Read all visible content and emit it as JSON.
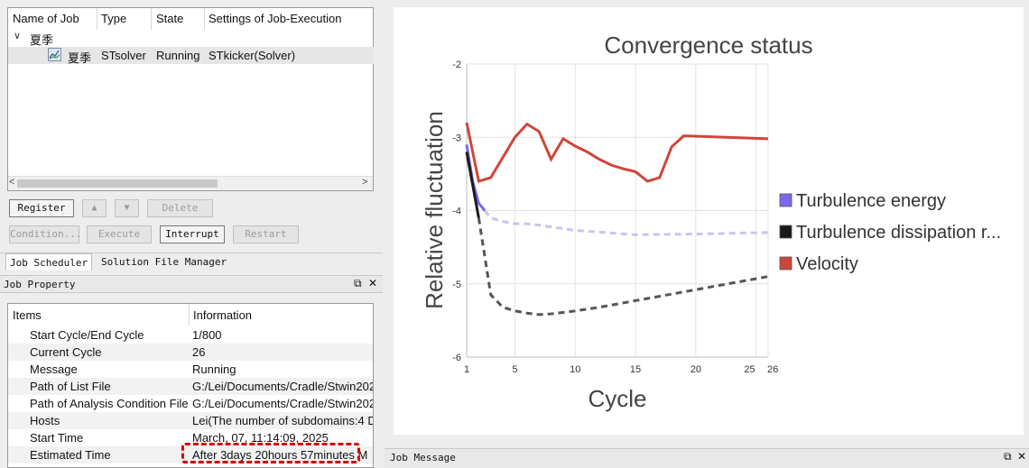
{
  "job_list": {
    "headers": {
      "name": "Name of Job",
      "type": "Type",
      "state": "State",
      "settings": "Settings of Job-Execution"
    },
    "group": {
      "toggle": "∨",
      "label": "夏季"
    },
    "jobs": [
      {
        "name": "夏季",
        "type": "STsolver",
        "state": "Running",
        "settings": "STkicker(Solver)"
      }
    ],
    "scroll_left": "<",
    "scroll_right": ">"
  },
  "buttons": {
    "register": "Register",
    "up": "▲",
    "down": "▼",
    "delete": "Delete",
    "condition": "Condition...",
    "execute": "Execute",
    "interrupt": "Interrupt",
    "restart": "Restart"
  },
  "tabs": {
    "job_scheduler": "Job Scheduler",
    "solution_file_manager": "Solution File Manager"
  },
  "job_property": {
    "title": "Job Property",
    "float_icon": "⧉",
    "close_icon": "✕",
    "headers": {
      "items": "Items",
      "information": "Information"
    },
    "rows": [
      {
        "item": "Start Cycle/End Cycle",
        "info": "1/800"
      },
      {
        "item": "Current Cycle",
        "info": "26"
      },
      {
        "item": "Message",
        "info": "Running"
      },
      {
        "item": "Path of List File",
        "info": "G:/Lei/Documents/Cradle/Stwin202"
      },
      {
        "item": "Path of Analysis Condition File",
        "info": "G:/Lei/Documents/Cradle/Stwin202"
      },
      {
        "item": "Hosts",
        "info": "Lei(The number of subdomains:4 D"
      },
      {
        "item": "Start Time",
        "info": "March, 07, 11:14:09, 2025"
      },
      {
        "item": "Estimated Time",
        "info": "After 3days 20hours 57minutes  M"
      }
    ]
  },
  "job_message": {
    "title": "Job Message",
    "float_icon": "⧉",
    "close_icon": "✕"
  },
  "colors": {
    "turbulence_energy": "#7b68ee",
    "turbulence_dissipation": "#1a1a1a",
    "velocity": "#d0453a",
    "highlight": "#d40000"
  },
  "chart_data": {
    "type": "line",
    "title": "Convergence status",
    "xlabel": "Cycle",
    "ylabel": "Relative fluctuation",
    "xlim": [
      1,
      26
    ],
    "ylim": [
      -6,
      -2
    ],
    "xticks": [
      "1",
      "5",
      "10",
      "15",
      "20",
      "25",
      "26"
    ],
    "yticks": [
      "-2",
      "-3",
      "-4",
      "-5",
      "-6"
    ],
    "grid": true,
    "legend_position": "right",
    "series": [
      {
        "name": "Turbulence energy",
        "color": "#7b68ee",
        "x": [
          1,
          1.5,
          2,
          2.5,
          3,
          4,
          5,
          6,
          7,
          10,
          15,
          20,
          26
        ],
        "y": [
          -3.1,
          -3.6,
          -3.9,
          -4.0,
          -4.1,
          -4.15,
          -4.18,
          -4.18,
          -4.2,
          -4.27,
          -4.33,
          -4.32,
          -4.3
        ],
        "solid_until_x": 2.5
      },
      {
        "name": "Turbulence dissipation r...",
        "color": "#1a1a1a",
        "x": [
          1,
          2,
          3,
          4,
          5,
          6,
          7,
          8,
          10,
          12,
          14,
          16,
          18,
          20,
          22,
          24,
          26
        ],
        "y": [
          -3.2,
          -4.1,
          -5.15,
          -5.32,
          -5.37,
          -5.4,
          -5.42,
          -5.41,
          -5.37,
          -5.32,
          -5.26,
          -5.2,
          -5.14,
          -5.08,
          -5.02,
          -4.96,
          -4.9
        ],
        "solid_until_x": 2
      },
      {
        "name": "Velocity",
        "color": "#d0453a",
        "x": [
          1,
          2,
          3,
          5,
          6,
          7,
          8,
          9,
          10,
          11,
          12,
          13,
          14,
          15,
          16,
          17,
          18,
          19,
          26
        ],
        "y": [
          -2.8,
          -3.6,
          -3.55,
          -3.0,
          -2.82,
          -2.92,
          -3.3,
          -3.02,
          -3.12,
          -3.2,
          -3.3,
          -3.38,
          -3.43,
          -3.47,
          -3.6,
          -3.55,
          -3.13,
          -2.98,
          -3.02
        ],
        "solid_until_x": 26
      }
    ]
  }
}
